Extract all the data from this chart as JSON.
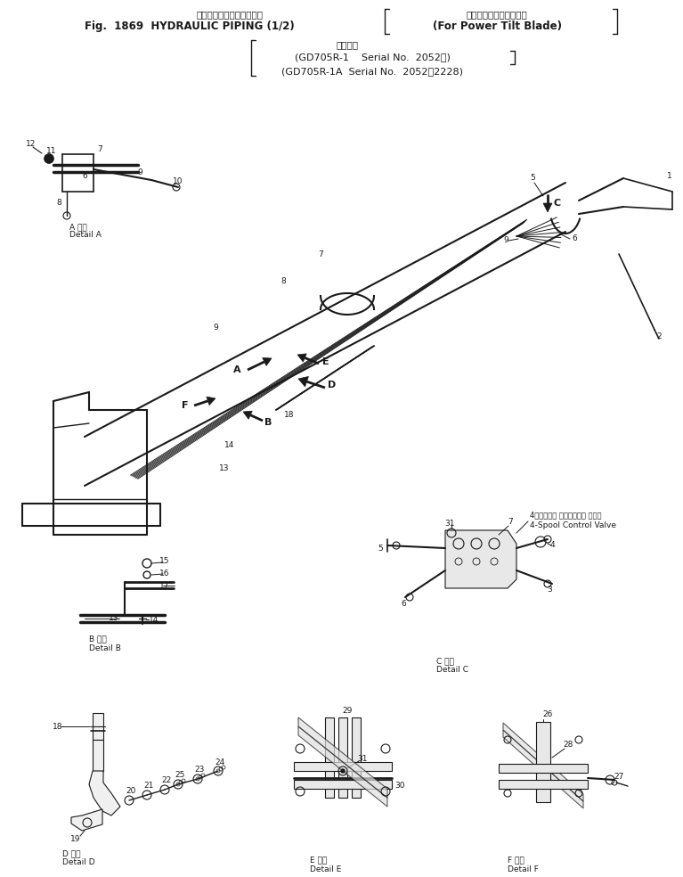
{
  "title_line1": "ハイドロリックパイピング",
  "title_line2_left": "Fig.  1869  HYDRAULIC PIPING (1/2)",
  "title_line2_right": "For Power Tilt Blade",
  "title_line3_right": "パワーチルトブレード用",
  "title_line4": "適用号機",
  "title_line5": "(GD705R-1    Serial No.  2052～)",
  "title_line6": "(GD705R-1A  Serial No.  2052～2228)",
  "bg_color": "#ffffff",
  "line_color": "#1a1a1a",
  "fig_width": 7.67,
  "fig_height": 9.84,
  "dpi": 100
}
